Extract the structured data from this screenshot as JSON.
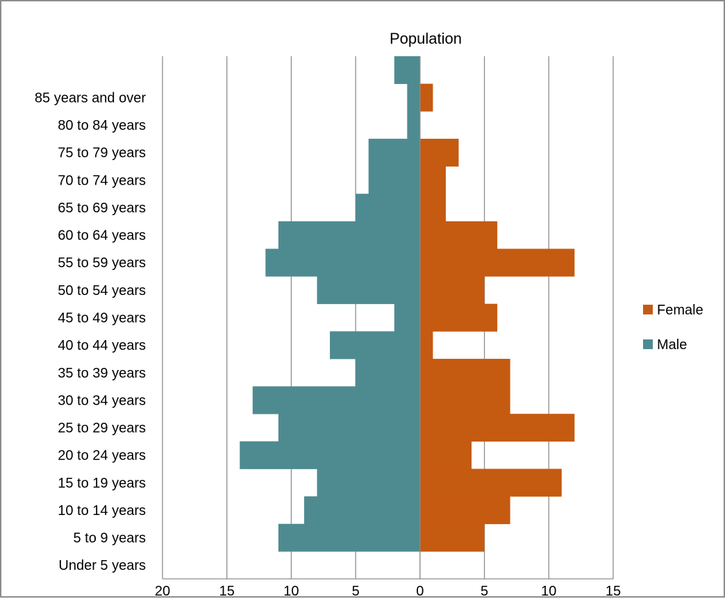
{
  "chart_data": {
    "type": "bar",
    "subtype": "population-pyramid",
    "orientation": "horizontal",
    "title": "Population",
    "xlabel": "",
    "ylabel": "",
    "xlim": [
      -20,
      15
    ],
    "x_ticks": [
      -20,
      -15,
      -10,
      -5,
      0,
      5,
      10,
      15
    ],
    "x_tick_labels": [
      "20",
      "15",
      "10",
      "5",
      "0",
      "5",
      "10",
      "15"
    ],
    "grid": "vertical",
    "legend_position": "right",
    "categories": [
      "Under 5 years",
      "5 to 9 years",
      "10 to 14 years",
      "15 to 19 years",
      "20 to 24 years",
      "25 to 29 years",
      "30 to 34 years",
      "35 to 39 years",
      "40 to 44 years",
      "45 to 49 years",
      "50 to 54 years",
      "55 to 59 years",
      "60 to 64 years",
      "65 to 69 years",
      "70 to 74 years",
      "75 to 79 years",
      "80 to 84 years",
      "85 years and over",
      ""
    ],
    "series": [
      {
        "name": "Female",
        "color": "#C55A11",
        "values": [
          0,
          5,
          7,
          11,
          4,
          12,
          7,
          7,
          1,
          6,
          5,
          12,
          6,
          2,
          2,
          3,
          0,
          1,
          0
        ]
      },
      {
        "name": "Male",
        "color": "#4E8B91",
        "values": [
          0,
          -11,
          -9,
          -8,
          -14,
          -11,
          -13,
          -5,
          -7,
          -2,
          -8,
          -12,
          -11,
          -5,
          -4,
          -4,
          -1,
          -1,
          -2
        ]
      }
    ]
  }
}
